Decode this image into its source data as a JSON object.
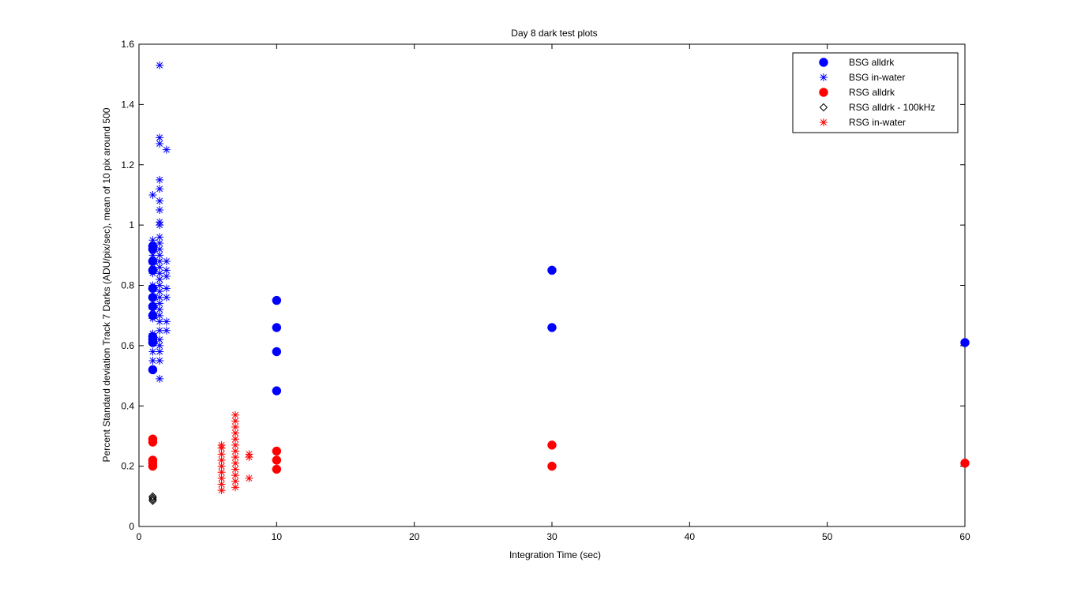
{
  "chart_data": {
    "type": "scatter",
    "title": "Day 8 dark test plots",
    "xlabel": "Integration Time (sec)",
    "ylabel": "Percent Standard deviation Track 7 Darks (ADU/pix/sec), mean of 10 pix around 500",
    "xlim": [
      0,
      60
    ],
    "ylim": [
      0,
      1.6
    ],
    "xticks": [
      0,
      10,
      20,
      30,
      40,
      50,
      60
    ],
    "yticks": [
      0,
      0.2,
      0.4,
      0.6,
      0.8,
      1,
      1.2,
      1.4,
      1.6
    ],
    "xtick_labels": [
      "0",
      "10",
      "20",
      "30",
      "40",
      "50",
      "60"
    ],
    "ytick_labels": [
      "0",
      "0.2",
      "0.4",
      "0.6",
      "0.8",
      "1",
      "1.2",
      "1.4",
      "1.6"
    ],
    "grid": false,
    "legend_position": "top-right",
    "series": [
      {
        "name": "BSG alldrk",
        "marker": "circle",
        "color": "#0000ff",
        "points": [
          [
            1,
            0.52
          ],
          [
            1,
            0.61
          ],
          [
            1,
            0.62
          ],
          [
            1,
            0.63
          ],
          [
            1,
            0.7
          ],
          [
            1,
            0.73
          ],
          [
            1,
            0.76
          ],
          [
            1,
            0.79
          ],
          [
            1,
            0.85
          ],
          [
            1,
            0.88
          ],
          [
            1,
            0.92
          ],
          [
            1,
            0.93
          ],
          [
            10,
            0.45
          ],
          [
            10,
            0.58
          ],
          [
            10,
            0.66
          ],
          [
            10,
            0.75
          ],
          [
            30,
            0.66
          ],
          [
            30,
            0.85
          ],
          [
            60,
            0.61
          ]
        ]
      },
      {
        "name": "BSG in-water",
        "marker": "asterisk",
        "color": "#0000ff",
        "points": [
          [
            1,
            0.55
          ],
          [
            1,
            0.58
          ],
          [
            1,
            0.64
          ],
          [
            1,
            0.69
          ],
          [
            1,
            0.72
          ],
          [
            1,
            0.76
          ],
          [
            1,
            0.8
          ],
          [
            1,
            0.84
          ],
          [
            1,
            0.87
          ],
          [
            1,
            0.9
          ],
          [
            1,
            0.95
          ],
          [
            1,
            1.1
          ],
          [
            1.5,
            0.49
          ],
          [
            1.5,
            0.55
          ],
          [
            1.5,
            0.58
          ],
          [
            1.5,
            0.6
          ],
          [
            1.5,
            0.62
          ],
          [
            1.5,
            0.65
          ],
          [
            1.5,
            0.68
          ],
          [
            1.5,
            0.7
          ],
          [
            1.5,
            0.72
          ],
          [
            1.5,
            0.74
          ],
          [
            1.5,
            0.76
          ],
          [
            1.5,
            0.78
          ],
          [
            1.5,
            0.8
          ],
          [
            1.5,
            0.82
          ],
          [
            1.5,
            0.84
          ],
          [
            1.5,
            0.86
          ],
          [
            1.5,
            0.88
          ],
          [
            1.5,
            0.9
          ],
          [
            1.5,
            0.92
          ],
          [
            1.5,
            0.94
          ],
          [
            1.5,
            0.96
          ],
          [
            1.5,
            1.0
          ],
          [
            1.5,
            1.01
          ],
          [
            1.5,
            1.05
          ],
          [
            1.5,
            1.08
          ],
          [
            1.5,
            1.12
          ],
          [
            1.5,
            1.15
          ],
          [
            1.5,
            1.27
          ],
          [
            1.5,
            1.29
          ],
          [
            1.5,
            1.53
          ],
          [
            2,
            0.65
          ],
          [
            2,
            0.68
          ],
          [
            2,
            0.76
          ],
          [
            2,
            0.79
          ],
          [
            2,
            0.83
          ],
          [
            2,
            0.85
          ],
          [
            2,
            0.88
          ],
          [
            2,
            1.25
          ]
        ]
      },
      {
        "name": "RSG alldrk",
        "marker": "circle",
        "color": "#ff0000",
        "points": [
          [
            1,
            0.2
          ],
          [
            1,
            0.21
          ],
          [
            1,
            0.22
          ],
          [
            1,
            0.28
          ],
          [
            1,
            0.29
          ],
          [
            10,
            0.19
          ],
          [
            10,
            0.22
          ],
          [
            10,
            0.25
          ],
          [
            30,
            0.2
          ],
          [
            30,
            0.27
          ],
          [
            60,
            0.21
          ]
        ]
      },
      {
        "name": "RSG alldrk - 100kHz",
        "marker": "diamond",
        "color": "#000000",
        "points": [
          [
            1,
            0.085
          ],
          [
            1,
            0.09
          ],
          [
            1,
            0.095
          ],
          [
            1,
            0.1
          ]
        ]
      },
      {
        "name": "RSG in-water",
        "marker": "asterisk",
        "color": "#ff0000",
        "points": [
          [
            6,
            0.12
          ],
          [
            6,
            0.14
          ],
          [
            6,
            0.16
          ],
          [
            6,
            0.18
          ],
          [
            6,
            0.2
          ],
          [
            6,
            0.22
          ],
          [
            6,
            0.24
          ],
          [
            6,
            0.26
          ],
          [
            6,
            0.27
          ],
          [
            7,
            0.13
          ],
          [
            7,
            0.15
          ],
          [
            7,
            0.17
          ],
          [
            7,
            0.19
          ],
          [
            7,
            0.21
          ],
          [
            7,
            0.23
          ],
          [
            7,
            0.25
          ],
          [
            7,
            0.27
          ],
          [
            7,
            0.29
          ],
          [
            7,
            0.31
          ],
          [
            7,
            0.33
          ],
          [
            7,
            0.35
          ],
          [
            7,
            0.37
          ],
          [
            8,
            0.16
          ],
          [
            8,
            0.23
          ],
          [
            8,
            0.24
          ]
        ]
      }
    ]
  }
}
